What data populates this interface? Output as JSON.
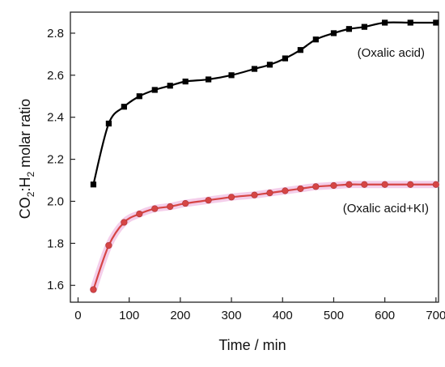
{
  "chart_data": {
    "type": "line",
    "xlabel": "Time / min",
    "ylabel_parts": {
      "base1": "CO",
      "sub1": "2",
      "mid": ":H",
      "sub2": "2",
      "rest": " molar ratio"
    },
    "xlim": [
      -15,
      705
    ],
    "ylim": [
      1.52,
      2.9
    ],
    "xticks": [
      0,
      100,
      200,
      300,
      400,
      500,
      600,
      700
    ],
    "yticks": [
      1.6,
      1.8,
      2.0,
      2.2,
      2.4,
      2.6,
      2.8
    ],
    "xtick_labels": [
      "0",
      "100",
      "200",
      "300",
      "400",
      "500",
      "600",
      "700"
    ],
    "ytick_labels": [
      "1.6",
      "1.8",
      "2.0",
      "2.2",
      "2.4",
      "2.6",
      "2.8"
    ],
    "grid": false,
    "series": [
      {
        "name": "(Oxalic acid)",
        "color": "#000000",
        "marker": "square",
        "x": [
          30,
          60,
          90,
          120,
          150,
          180,
          210,
          255,
          300,
          345,
          375,
          405,
          435,
          465,
          500,
          530,
          560,
          600,
          650,
          700
        ],
        "y": [
          2.08,
          2.37,
          2.45,
          2.5,
          2.53,
          2.55,
          2.57,
          2.58,
          2.6,
          2.63,
          2.65,
          2.68,
          2.72,
          2.77,
          2.8,
          2.82,
          2.83,
          2.85,
          2.85,
          2.85
        ]
      },
      {
        "name": "(Oxalic acid+KI)",
        "color": "#d64545",
        "marker": "circle",
        "x": [
          30,
          60,
          90,
          120,
          150,
          180,
          210,
          255,
          300,
          345,
          375,
          405,
          435,
          465,
          500,
          530,
          560,
          600,
          650,
          700
        ],
        "y": [
          1.58,
          1.79,
          1.9,
          1.94,
          1.965,
          1.975,
          1.99,
          2.005,
          2.02,
          2.03,
          2.04,
          2.05,
          2.06,
          2.07,
          2.075,
          2.08,
          2.08,
          2.08,
          2.08,
          2.08
        ]
      }
    ]
  }
}
